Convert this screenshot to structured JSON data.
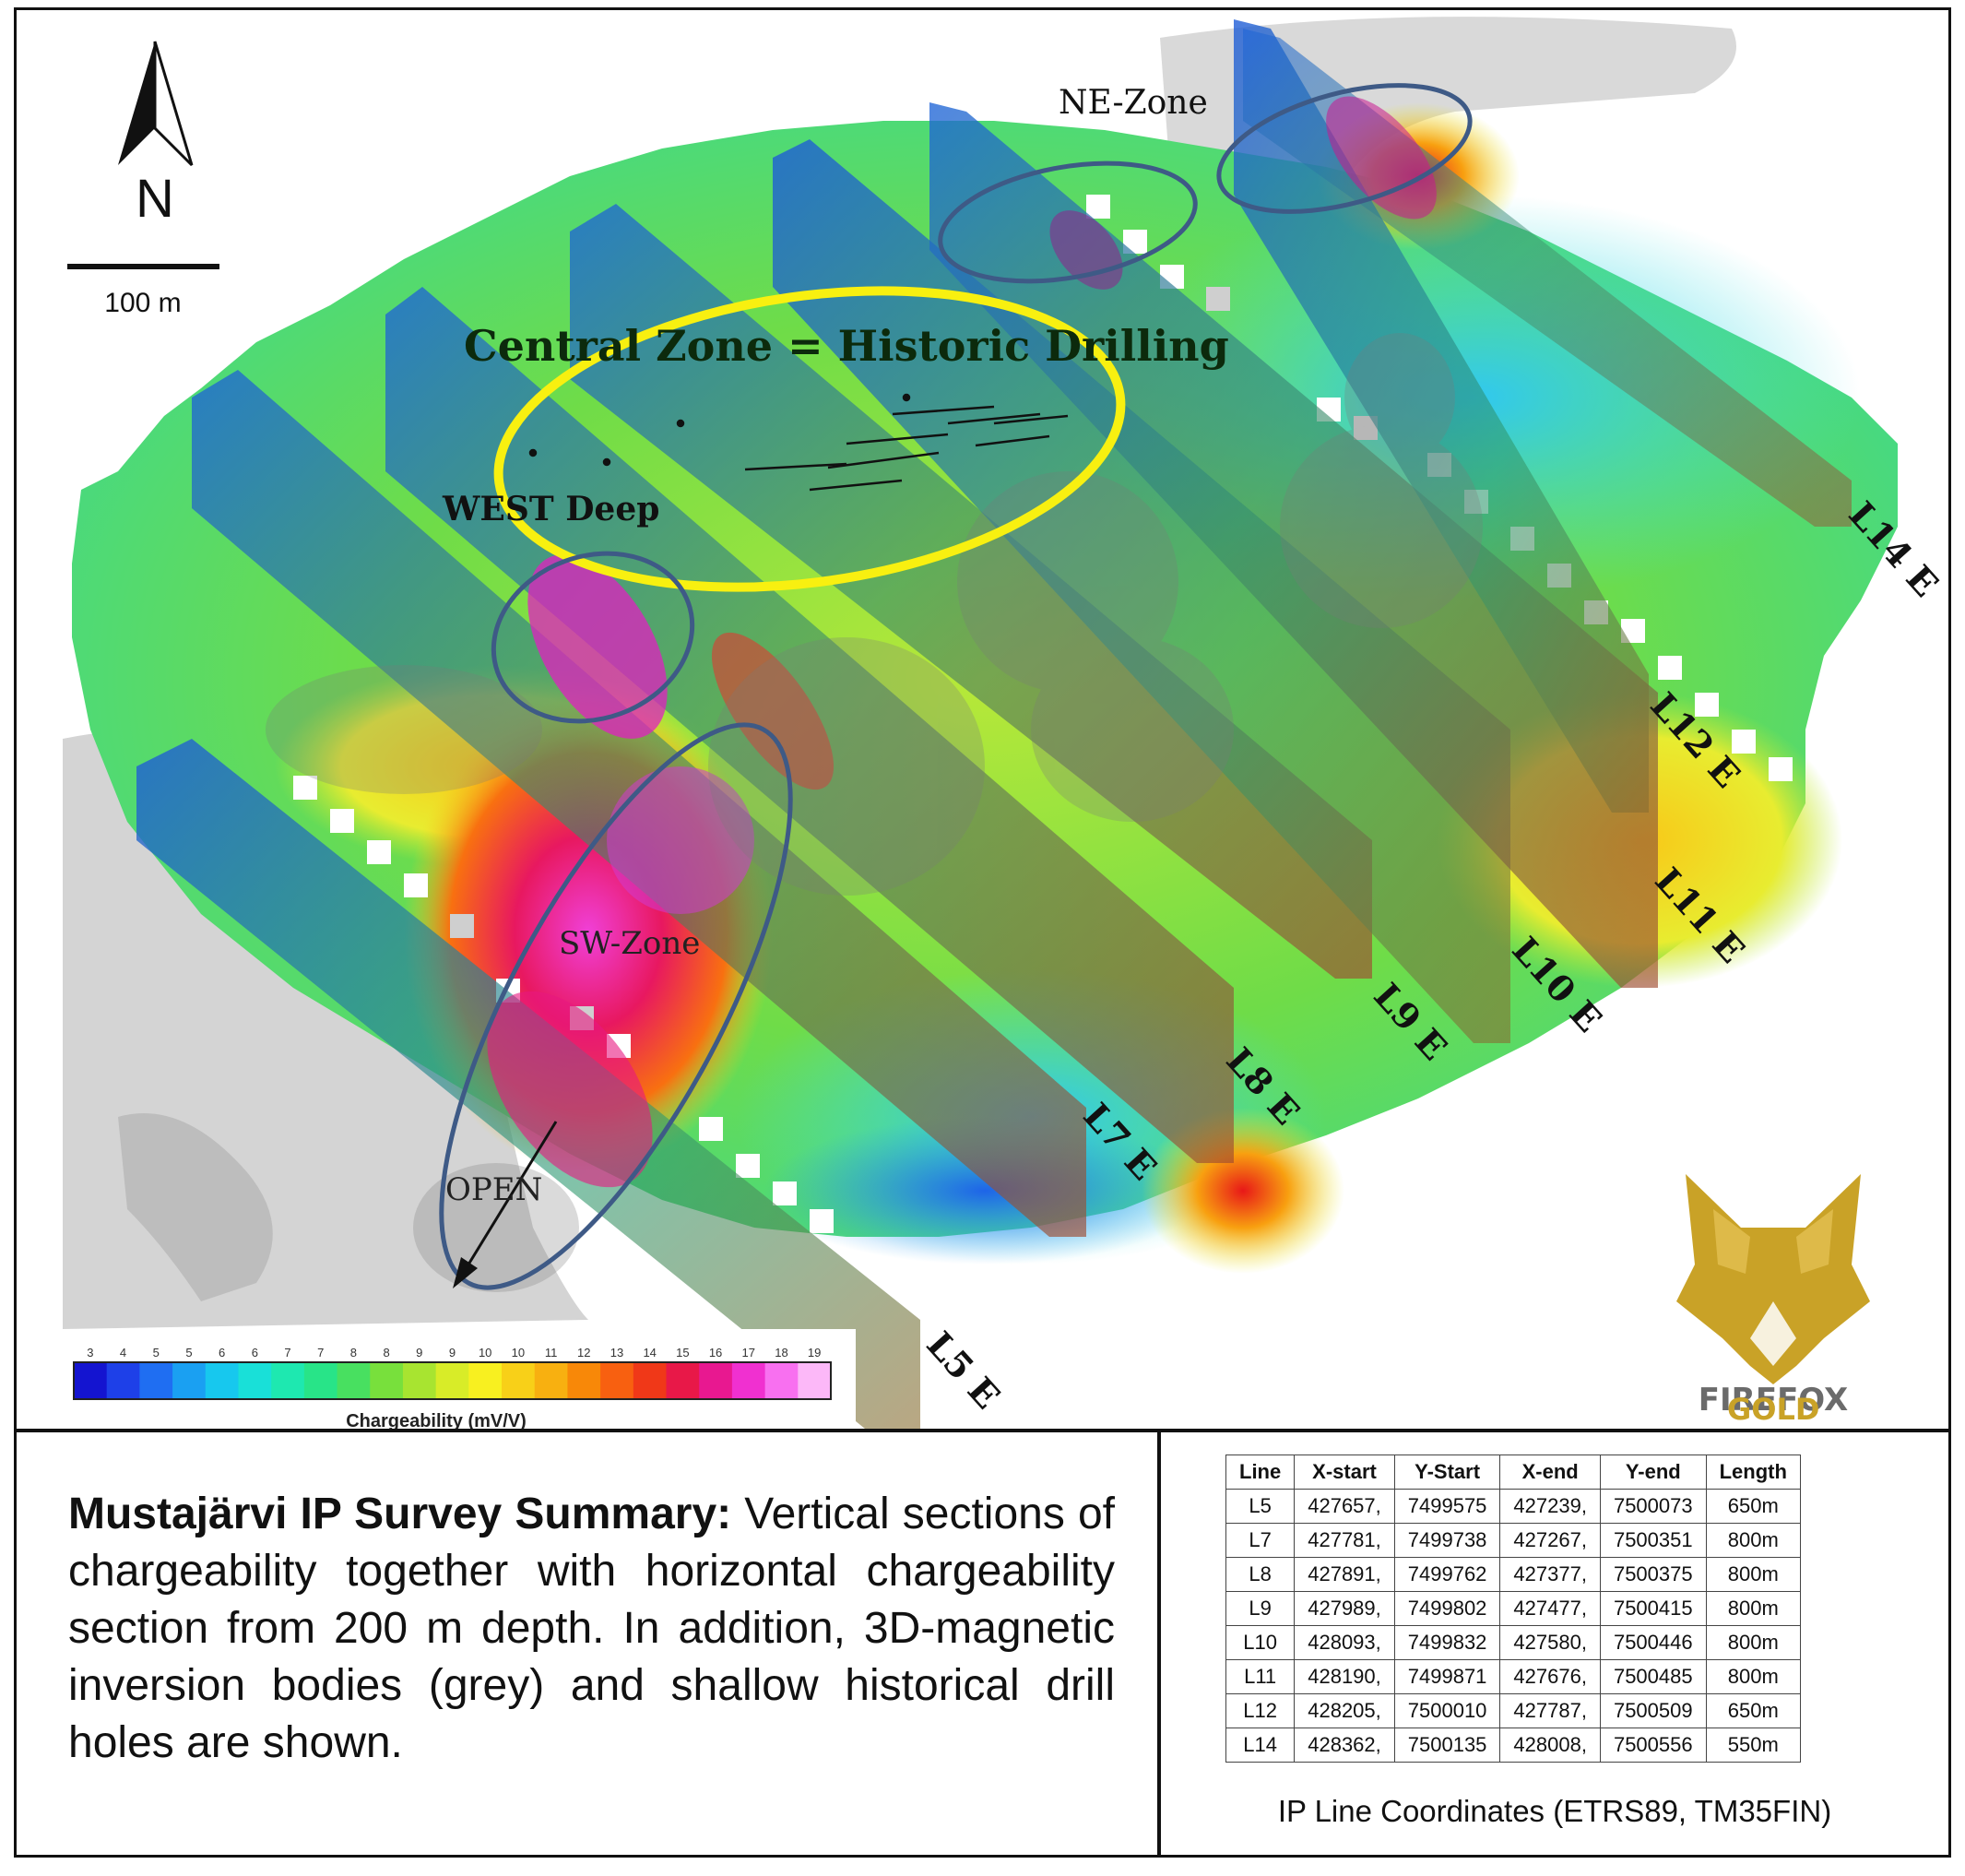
{
  "map": {
    "north_label": "N",
    "scale_label": "100 m",
    "zones": {
      "ne": "NE-Zone",
      "central": "Central Zone = Historic Drilling",
      "west": "WEST Deep",
      "sw": "SW-Zone",
      "open": "OPEN"
    },
    "lines": {
      "l5": "L5 E",
      "l7": "L7 E",
      "l8": "L8 E",
      "l9": "L9 E",
      "l10": "L10 E",
      "l11": "L11 E",
      "l12": "L12 E",
      "l14": "L14 E"
    },
    "colorbar": {
      "ticks": [
        "3",
        "4",
        "5",
        "5",
        "6",
        "6",
        "7",
        "7",
        "8",
        "8",
        "9",
        "9",
        "10",
        "10",
        "11",
        "12",
        "13",
        "14",
        "15",
        "16",
        "17",
        "18",
        "19"
      ],
      "label": "Chargeability (mV/V)",
      "colors": [
        "#1414d0",
        "#1e40e8",
        "#1f6ef2",
        "#1aa0f2",
        "#17c8ee",
        "#19e0d8",
        "#1ee8b0",
        "#28e488",
        "#48e060",
        "#78e03c",
        "#a8e430",
        "#d8ec28",
        "#f8f020",
        "#f8d018",
        "#f8b010",
        "#f88808",
        "#f86010",
        "#f03818",
        "#e81848",
        "#e81890",
        "#f030d0",
        "#f870f0",
        "#fcb8f8"
      ]
    },
    "logo": {
      "line1": "FIREFOX",
      "line2": "GOLD",
      "gold": "#c9a227",
      "grey": "#6b6b6b"
    }
  },
  "summary": {
    "bold": "Mustajärvi IP Survey Summary:",
    "text": " Vertical sections of chargeability together with horizontal chargeability section from 200 m depth.  In addition, 3D-magnetic inversion bodies (grey) and shallow historical drill holes are shown."
  },
  "coordinates": {
    "headers": [
      "Line",
      "X-start",
      "Y-Start",
      "X-end",
      "Y-end",
      "Length"
    ],
    "rows": [
      [
        "L5",
        "427657,",
        "7499575",
        "427239,",
        "7500073",
        "650m"
      ],
      [
        "L7",
        "427781,",
        "7499738",
        "427267,",
        "7500351",
        "800m"
      ],
      [
        "L8",
        "427891,",
        "7499762",
        "427377,",
        "7500375",
        "800m"
      ],
      [
        "L9",
        "427989,",
        "7499802",
        "427477,",
        "7500415",
        "800m"
      ],
      [
        "L10",
        "428093,",
        "7499832",
        "427580,",
        "7500446",
        "800m"
      ],
      [
        "L11",
        "428190,",
        "7499871",
        "427676,",
        "7500485",
        "800m"
      ],
      [
        "L12",
        "428205,",
        "7500010",
        "427787,",
        "7500509",
        "650m"
      ],
      [
        "L14",
        "428362,",
        "7500135",
        "428008,",
        "7500556",
        "550m"
      ]
    ],
    "caption": "IP Line Coordinates (ETRS89, TM35FIN)"
  }
}
